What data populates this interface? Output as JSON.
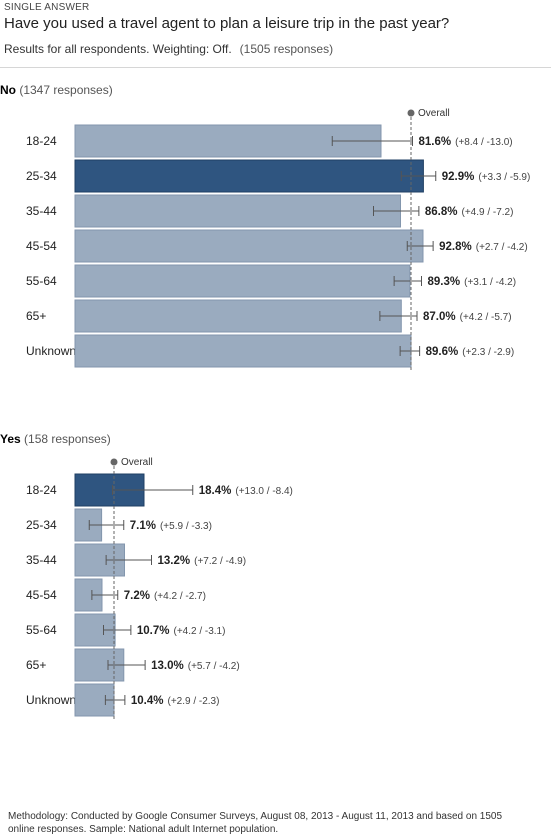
{
  "header": {
    "kicker": "SINGLE ANSWER",
    "question": "Have you used a travel agent to plan a leisure trip in the past year?",
    "meta": "Results for all respondents. Weighting: Off.",
    "responses": "(1505 responses)"
  },
  "footer": {
    "methodology": "Methodology: Conducted by Google Consumer Surveys, August 08, 2013 - August 11, 2013 and based on 1505 online responses. Sample: National adult Internet population."
  },
  "colors": {
    "bar_light": "#9aabbf",
    "bar_highlight": "#2f5580",
    "error_bar": "#555555",
    "overall_line": "#666666"
  },
  "chart_data": [
    {
      "type": "bar",
      "orientation": "horizontal",
      "group": "No",
      "group_responses": "(1347 responses)",
      "overall_label": "Overall",
      "overall_value": 89.6,
      "xlim": [
        0,
        100
      ],
      "categories": [
        "18-24",
        "25-34",
        "35-44",
        "45-54",
        "55-64",
        "65+",
        "Unknown"
      ],
      "values": [
        81.6,
        92.9,
        86.8,
        92.8,
        89.3,
        87.0,
        89.6
      ],
      "value_labels": [
        "81.6%",
        "92.9%",
        "86.8%",
        "92.8%",
        "89.3%",
        "87.0%",
        "89.6%"
      ],
      "ci_labels": [
        "(+8.4 / -13.0)",
        "(+3.3 / -5.9)",
        "(+4.9 / -7.2)",
        "(+2.7 / -4.2)",
        "(+3.1 / -4.2)",
        "(+4.2 / -5.7)",
        "(+2.3 / -2.9)"
      ],
      "ci_plus": [
        8.4,
        3.3,
        4.9,
        2.7,
        3.1,
        4.2,
        2.3
      ],
      "ci_minus": [
        13.0,
        5.9,
        7.2,
        4.2,
        4.2,
        5.7,
        2.9
      ],
      "highlight_index": 1
    },
    {
      "type": "bar",
      "orientation": "horizontal",
      "group": "Yes",
      "group_responses": "(158 responses)",
      "overall_label": "Overall",
      "overall_value": 10.4,
      "xlim": [
        0,
        100
      ],
      "categories": [
        "18-24",
        "25-34",
        "35-44",
        "45-54",
        "55-64",
        "65+",
        "Unknown"
      ],
      "values": [
        18.4,
        7.1,
        13.2,
        7.2,
        10.7,
        13.0,
        10.4
      ],
      "value_labels": [
        "18.4%",
        "7.1%",
        "13.2%",
        "7.2%",
        "10.7%",
        "13.0%",
        "10.4%"
      ],
      "ci_labels": [
        "(+13.0 / -8.4)",
        "(+5.9 / -3.3)",
        "(+7.2 / -4.9)",
        "(+4.2 / -2.7)",
        "(+4.2 / -3.1)",
        "(+5.7 / -4.2)",
        "(+2.9 / -2.3)"
      ],
      "ci_plus": [
        13.0,
        5.9,
        7.2,
        4.2,
        4.2,
        5.7,
        2.9
      ],
      "ci_minus": [
        8.4,
        3.3,
        4.9,
        2.7,
        3.1,
        4.2,
        2.3
      ],
      "highlight_index": 0
    }
  ]
}
